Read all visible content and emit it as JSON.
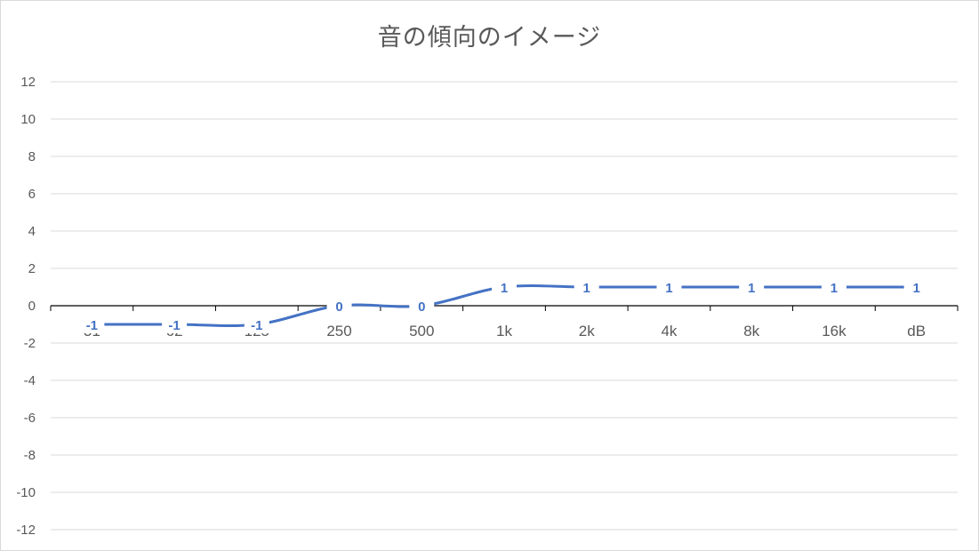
{
  "chart_data": {
    "type": "line",
    "title": "音の傾向のイメージ",
    "xlabel": "",
    "ylabel": "",
    "categories": [
      "31",
      "62",
      "125",
      "250",
      "500",
      "1k",
      "2k",
      "4k",
      "8k",
      "16k",
      "dB"
    ],
    "series": [
      {
        "values": [
          -1,
          -1,
          -1,
          0,
          0,
          1,
          1,
          1,
          1,
          1,
          1
        ]
      }
    ],
    "ylim": [
      -12,
      12
    ],
    "yticks": [
      -12,
      -10,
      -8,
      -6,
      -4,
      -2,
      0,
      2,
      4,
      6,
      8,
      10,
      12
    ],
    "grid": true,
    "legend": "none",
    "data_labels": true,
    "colors": {
      "line": "#4472c4",
      "grid": "#d9d9d9",
      "axis": "#000000",
      "text": "#595959"
    }
  }
}
